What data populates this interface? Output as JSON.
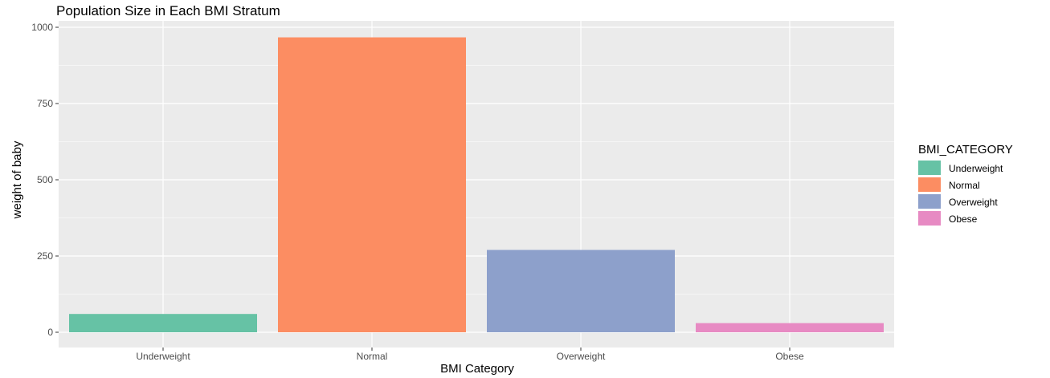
{
  "chart_data": {
    "type": "bar",
    "title": "Population Size in Each BMI Stratum",
    "xlabel": "BMI Category",
    "ylabel": "weight of baby",
    "categories": [
      "Underweight",
      "Normal",
      "Overweight",
      "Obese"
    ],
    "values": [
      60,
      967,
      270,
      30
    ],
    "colors": [
      "#66c2a5",
      "#fc8d62",
      "#8da0cb",
      "#e78ac3"
    ],
    "ylim": [
      0,
      1000
    ],
    "yticks": [
      0,
      250,
      500,
      750,
      1000
    ],
    "grid": true,
    "background": "#ebebeb",
    "legend": {
      "title": "BMI_CATEGORY",
      "position": "right",
      "items": [
        "Underweight",
        "Normal",
        "Overweight",
        "Obese"
      ]
    }
  }
}
